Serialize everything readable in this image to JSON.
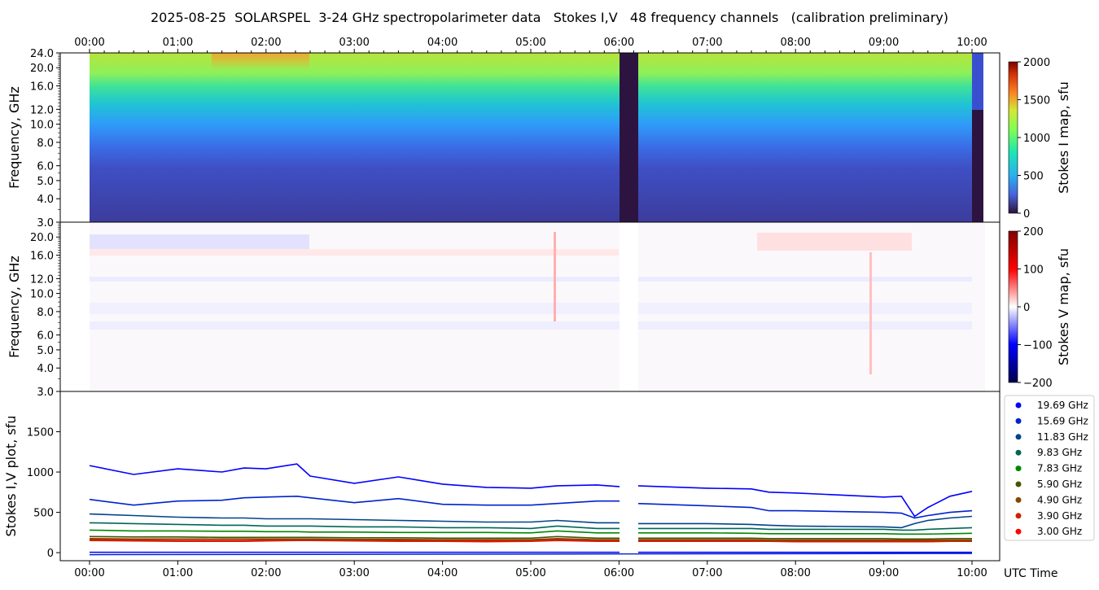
{
  "title": "2025-08-25  SOLARSPEL  3-24 GHz spectropolarimeter data   Stokes I,V   48 frequency channels   (calibration preliminary)",
  "colors": {
    "axis": "#000000",
    "stripe": "#2d1440"
  },
  "chart_data": [
    {
      "type": "heatmap",
      "title": "Stokes I map",
      "ylabel": "Frequency, GHz",
      "xticks": [
        "00:00",
        "01:00",
        "02:00",
        "03:00",
        "04:00",
        "05:00",
        "06:00",
        "07:00",
        "08:00",
        "09:00",
        "10:00"
      ],
      "yticks": [
        "24.0",
        "20.0",
        "16.0",
        "12.0",
        "10.0",
        "8.0",
        "6.0",
        "5.0",
        "4.0",
        "3.0"
      ],
      "ylim": [
        3,
        24
      ],
      "xlim_hours": [
        -0.33,
        10.31
      ],
      "colorbar": {
        "label": "Stokes I map, sfu",
        "range": [
          0,
          2000
        ],
        "ticks": [
          "2000",
          "1500",
          "1000",
          "500",
          "0"
        ]
      },
      "data_gap_hours": [
        6.0,
        6.2
      ]
    },
    {
      "type": "heatmap",
      "title": "Stokes V map",
      "ylabel": "Frequency, GHz",
      "yticks": [
        "20.0",
        "16.0",
        "12.0",
        "10.0",
        "8.0",
        "6.0",
        "5.0",
        "4.0",
        "3.0"
      ],
      "ylim": [
        3,
        24
      ],
      "colorbar": {
        "label": "Stokes V map, sfu",
        "range": [
          -200,
          200
        ],
        "ticks": [
          "200",
          "100",
          "0",
          "−100",
          "−200"
        ]
      }
    },
    {
      "type": "line",
      "ylabel": "Stokes I,V plot, sfu",
      "xlabel": "UTC Time",
      "ylim": [
        -100,
        2000
      ],
      "yticks": [
        "1500",
        "1000",
        "500",
        "0"
      ],
      "xticks": [
        "00:00",
        "01:00",
        "02:00",
        "03:00",
        "04:00",
        "05:00",
        "06:00",
        "07:00",
        "08:00",
        "09:00",
        "10:00"
      ],
      "legend_position": "right",
      "x": [
        0,
        0.5,
        1,
        1.5,
        1.75,
        2,
        2.35,
        2.5,
        3,
        3.5,
        4,
        4.5,
        5,
        5.3,
        5.75,
        6,
        6.2,
        7,
        7.5,
        7.7,
        8,
        9,
        9.2,
        9.35,
        9.5,
        9.75,
        10
      ],
      "series": [
        {
          "name": "19.69 GHz",
          "color": "#0000ff",
          "values": [
            1080,
            970,
            1040,
            1000,
            1050,
            1040,
            1100,
            950,
            860,
            940,
            850,
            810,
            800,
            830,
            840,
            820,
            830,
            800,
            790,
            750,
            740,
            690,
            700,
            450,
            560,
            700,
            760
          ]
        },
        {
          "name": "15.69 GHz",
          "color": "#0022cc",
          "values": [
            660,
            590,
            640,
            650,
            680,
            690,
            700,
            680,
            620,
            670,
            600,
            590,
            590,
            610,
            640,
            640,
            610,
            580,
            560,
            520,
            520,
            500,
            490,
            430,
            460,
            500,
            520
          ]
        },
        {
          "name": "11.83 GHz",
          "color": "#004488",
          "values": [
            480,
            460,
            440,
            430,
            430,
            420,
            420,
            420,
            410,
            400,
            390,
            380,
            380,
            400,
            370,
            370,
            360,
            360,
            350,
            340,
            330,
            320,
            310,
            360,
            400,
            430,
            450
          ]
        },
        {
          "name": "9.83 GHz",
          "color": "#006655",
          "values": [
            370,
            360,
            350,
            340,
            340,
            330,
            330,
            330,
            320,
            320,
            310,
            310,
            300,
            330,
            300,
            300,
            300,
            300,
            300,
            290,
            290,
            290,
            280,
            280,
            290,
            300,
            310
          ]
        },
        {
          "name": "7.83 GHz",
          "color": "#008800",
          "values": [
            280,
            270,
            270,
            265,
            265,
            260,
            260,
            255,
            255,
            250,
            250,
            250,
            245,
            270,
            245,
            245,
            245,
            245,
            240,
            235,
            235,
            235,
            230,
            230,
            230,
            235,
            240
          ]
        },
        {
          "name": "5.90 GHz",
          "color": "#445500",
          "values": [
            200,
            195,
            195,
            190,
            190,
            190,
            190,
            190,
            185,
            185,
            180,
            180,
            180,
            200,
            180,
            180,
            180,
            180,
            180,
            175,
            175,
            175,
            170,
            170,
            170,
            175,
            175
          ]
        },
        {
          "name": "4.90 GHz",
          "color": "#884400",
          "values": [
            175,
            170,
            170,
            170,
            170,
            170,
            170,
            170,
            165,
            165,
            160,
            160,
            160,
            175,
            160,
            160,
            160,
            160,
            160,
            155,
            155,
            155,
            155,
            155,
            155,
            155,
            155
          ]
        },
        {
          "name": "3.90 GHz",
          "color": "#cc2200",
          "values": [
            150,
            145,
            140,
            140,
            140,
            145,
            150,
            150,
            145,
            140,
            140,
            135,
            140,
            150,
            140,
            140,
            140,
            140,
            140,
            140,
            135,
            135,
            135,
            135,
            135,
            140,
            140
          ]
        },
        {
          "name": "3.00 GHz",
          "color": "#ff0000",
          "values": [
            160,
            155,
            150,
            150,
            150,
            155,
            155,
            155,
            150,
            150,
            150,
            150,
            150,
            160,
            150,
            150,
            150,
            150,
            150,
            150,
            150,
            145,
            145,
            145,
            145,
            150,
            150
          ]
        }
      ]
    }
  ]
}
